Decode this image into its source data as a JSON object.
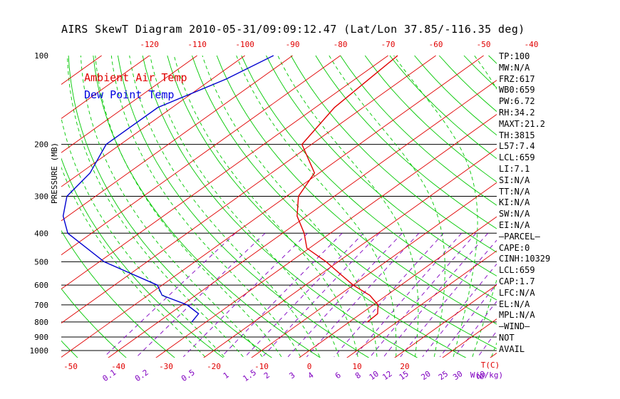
{
  "header": {
    "title": "AIRS SkewT Diagram 2010-05-31/09:09:12.47 (Lat/Lon 37.85/-116.35 deg)"
  },
  "legend": {
    "air_label": "Ambient Air Temp",
    "dew_label": "Dew Point Temp"
  },
  "colors": {
    "air": "#e00000",
    "dew": "#0000d0",
    "isotherm": "#e00000",
    "dry_adiabat": "#00c800",
    "moist_adiabat": "#00c800",
    "mixing_ratio": "#8000c0",
    "isobar": "#000000"
  },
  "stats": [
    "TP:100",
    "MW:N/A",
    "FRZ:617",
    "WB0:659",
    "PW:6.72",
    "RH:34.2",
    "MAXT:21.2",
    "TH:3815",
    "L57:7.4",
    "LCL:659",
    "LI:7.1",
    "SI:N/A",
    "TT:N/A",
    "KI:N/A",
    "SW:N/A",
    "EI:N/A",
    "—PARCEL—",
    "CAPE:0",
    "CINH:10329",
    "LCL:659",
    "CAP:1.7",
    "LFC:N/A",
    "EL:N/A",
    "MPL:N/A",
    "—WIND—",
    "NOT",
    "AVAIL"
  ],
  "chart_data": {
    "type": "line",
    "title": "AIRS SkewT Diagram 2010-05-31/09:09:12.47 (Lat/Lon 37.85/-116.35 deg)",
    "ylabel": "PRESSURE (MB)",
    "bottom_axis_label": "T(C)",
    "mixing_axis_label": "W(g/kg)",
    "pressure_ticks": [
      100,
      200,
      300,
      400,
      500,
      600,
      700,
      800,
      900,
      1000
    ],
    "pressure_range": [
      1050,
      100
    ],
    "bottom_temp_ticks": [
      -50,
      -40,
      -30,
      -20,
      -10,
      0,
      10,
      20
    ],
    "top_temp_ticks": [
      -120,
      -110,
      -100,
      -90,
      -80,
      -70,
      -60,
      -50,
      -40
    ],
    "mixing_ratio_ticks": [
      "0.1",
      "0.2",
      "0.5",
      "1",
      "1.5",
      "2",
      "3",
      "4",
      "6",
      "8",
      "10",
      "12",
      "15",
      "20",
      "25",
      "30",
      "40"
    ],
    "series": [
      {
        "name": "Ambient Air Temp",
        "p": [
          100,
          150,
          200,
          250,
          300,
          350,
          400,
          450,
          500,
          550,
          600,
          650,
          700,
          750,
          800
        ],
        "t": [
          -68,
          -66,
          -62,
          -51,
          -47.5,
          -42,
          -35.5,
          -30.5,
          -22.5,
          -16,
          -10,
          -3.5,
          1,
          3.5,
          3.8
        ]
      },
      {
        "name": "Dew Point Temp",
        "p": [
          100,
          120,
          150,
          200,
          250,
          300,
          350,
          400,
          500,
          600,
          650,
          700,
          750,
          800
        ],
        "t": [
          -94,
          -97,
          -103,
          -103,
          -98,
          -96,
          -91,
          -85,
          -69,
          -51,
          -47,
          -39,
          -34,
          -33
        ]
      }
    ]
  }
}
